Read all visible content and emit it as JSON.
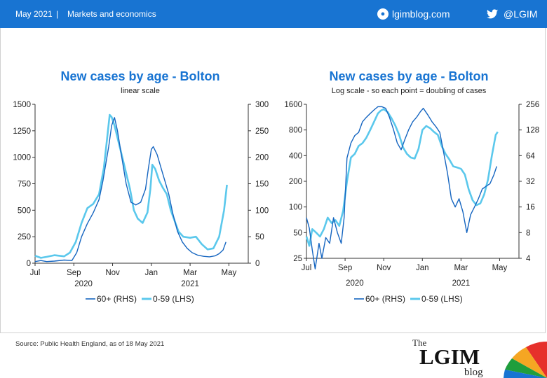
{
  "header": {
    "date": "May 2021",
    "separator": "|",
    "category": "Markets and economics",
    "site": "lgimblog.com",
    "twitter_handle": "@LGIM",
    "background_color": "#1874d2"
  },
  "footer": {
    "source": "Source: Public Health England, as of 18 May 2021",
    "logo_the": "The",
    "logo_main": "LGIM",
    "logo_blog": "blog"
  },
  "chart_data": [
    {
      "type": "line",
      "title": "New cases by age - Bolton",
      "subtitle": "linear scale",
      "x_ticks": [
        "Jul",
        "Sep",
        "Nov",
        "Jan",
        "Mar",
        "May"
      ],
      "x_years": [
        "2020",
        "2021"
      ],
      "x_range": [
        0,
        11
      ],
      "left_axis": {
        "range": [
          0,
          1500
        ],
        "ticks": [
          "0",
          "250",
          "500",
          "750",
          "1000",
          "1250",
          "1500"
        ],
        "scale": "linear"
      },
      "right_axis": {
        "range": [
          0,
          300
        ],
        "ticks": [
          "0",
          "50",
          "100",
          "150",
          "200",
          "250",
          "300"
        ],
        "scale": "linear"
      },
      "legend_position": "bottom",
      "series": [
        {
          "name": "60+ (RHS)",
          "axis": "right",
          "color": "#1565c0",
          "points": [
            [
              0,
              3
            ],
            [
              0.3,
              5
            ],
            [
              0.6,
              3
            ],
            [
              1,
              4
            ],
            [
              1.5,
              6
            ],
            [
              1.9,
              5
            ],
            [
              2.15,
              20
            ],
            [
              2.4,
              50
            ],
            [
              2.7,
              75
            ],
            [
              3,
              95
            ],
            [
              3.3,
              120
            ],
            [
              3.5,
              155
            ],
            [
              3.8,
              220
            ],
            [
              3.95,
              260
            ],
            [
              4.1,
              275
            ],
            [
              4.25,
              250
            ],
            [
              4.45,
              205
            ],
            [
              4.7,
              150
            ],
            [
              4.95,
              115
            ],
            [
              5.2,
              110
            ],
            [
              5.45,
              115
            ],
            [
              5.7,
              140
            ],
            [
              5.85,
              180
            ],
            [
              6.0,
              215
            ],
            [
              6.1,
              220
            ],
            [
              6.3,
              205
            ],
            [
              6.5,
              180
            ],
            [
              6.7,
              155
            ],
            [
              6.9,
              130
            ],
            [
              7.1,
              95
            ],
            [
              7.35,
              60
            ],
            [
              7.6,
              40
            ],
            [
              7.85,
              28
            ],
            [
              8.1,
              20
            ],
            [
              8.4,
              15
            ],
            [
              8.7,
              13
            ],
            [
              9.0,
              12
            ],
            [
              9.3,
              14
            ],
            [
              9.5,
              18
            ],
            [
              9.7,
              25
            ],
            [
              9.85,
              40
            ]
          ]
        },
        {
          "name": "0-59 (LHS)",
          "axis": "left",
          "color": "#5bc8ec",
          "points": [
            [
              0,
              70
            ],
            [
              0.3,
              50
            ],
            [
              0.6,
              60
            ],
            [
              1,
              75
            ],
            [
              1.5,
              65
            ],
            [
              1.8,
              100
            ],
            [
              2.1,
              200
            ],
            [
              2.4,
              380
            ],
            [
              2.7,
              520
            ],
            [
              3.0,
              560
            ],
            [
              3.3,
              650
            ],
            [
              3.55,
              900
            ],
            [
              3.75,
              1230
            ],
            [
              3.85,
              1400
            ],
            [
              3.95,
              1380
            ],
            [
              4.1,
              1300
            ],
            [
              4.3,
              1150
            ],
            [
              4.5,
              1000
            ],
            [
              4.7,
              850
            ],
            [
              4.9,
              700
            ],
            [
              5.1,
              500
            ],
            [
              5.3,
              420
            ],
            [
              5.55,
              380
            ],
            [
              5.8,
              480
            ],
            [
              5.95,
              700
            ],
            [
              6.05,
              930
            ],
            [
              6.2,
              890
            ],
            [
              6.4,
              780
            ],
            [
              6.6,
              710
            ],
            [
              6.8,
              650
            ],
            [
              7.0,
              500
            ],
            [
              7.2,
              400
            ],
            [
              7.4,
              300
            ],
            [
              7.65,
              250
            ],
            [
              8.0,
              240
            ],
            [
              8.3,
              250
            ],
            [
              8.6,
              180
            ],
            [
              8.9,
              130
            ],
            [
              9.2,
              140
            ],
            [
              9.5,
              250
            ],
            [
              9.75,
              500
            ],
            [
              9.9,
              740
            ]
          ]
        }
      ]
    },
    {
      "type": "line",
      "title": "New cases by age - Bolton",
      "subtitle": "Log scale - so each point = doubling of cases",
      "x_ticks": [
        "Jul",
        "Sep",
        "Nov",
        "Jan",
        "Mar",
        "May"
      ],
      "x_years": [
        "2020",
        "2021"
      ],
      "x_range": [
        0,
        11
      ],
      "left_axis": {
        "range": [
          25,
          1600
        ],
        "ticks": [
          "25",
          "50",
          "100",
          "200",
          "400",
          "800",
          "1600"
        ],
        "scale": "log2"
      },
      "right_axis": {
        "range": [
          4,
          256
        ],
        "ticks": [
          "4",
          "8",
          "16",
          "32",
          "64",
          "128",
          "256"
        ],
        "scale": "log2"
      },
      "legend_position": "bottom",
      "series": [
        {
          "name": "60+ (RHS)",
          "axis": "right",
          "color": "#1565c0",
          "points": [
            [
              0,
              12
            ],
            [
              0.15,
              9
            ],
            [
              0.3,
              5
            ],
            [
              0.45,
              3
            ],
            [
              0.65,
              6
            ],
            [
              0.8,
              4
            ],
            [
              1,
              7
            ],
            [
              1.2,
              6
            ],
            [
              1.4,
              12
            ],
            [
              1.6,
              8
            ],
            [
              1.8,
              6
            ],
            [
              1.95,
              12
            ],
            [
              2.1,
              60
            ],
            [
              2.3,
              90
            ],
            [
              2.5,
              110
            ],
            [
              2.7,
              120
            ],
            [
              2.9,
              160
            ],
            [
              3.1,
              180
            ],
            [
              3.3,
              200
            ],
            [
              3.5,
              220
            ],
            [
              3.7,
              240
            ],
            [
              3.9,
              240
            ],
            [
              4.1,
              230
            ],
            [
              4.3,
              180
            ],
            [
              4.5,
              130
            ],
            [
              4.7,
              90
            ],
            [
              4.9,
              75
            ],
            [
              5.1,
              100
            ],
            [
              5.3,
              130
            ],
            [
              5.5,
              160
            ],
            [
              5.7,
              180
            ],
            [
              5.9,
              210
            ],
            [
              6.05,
              230
            ],
            [
              6.3,
              190
            ],
            [
              6.5,
              160
            ],
            [
              6.7,
              140
            ],
            [
              6.9,
              120
            ],
            [
              7.1,
              70
            ],
            [
              7.3,
              40
            ],
            [
              7.5,
              20
            ],
            [
              7.7,
              16
            ],
            [
              7.9,
              20
            ],
            [
              8.1,
              14
            ],
            [
              8.3,
              8
            ],
            [
              8.5,
              13
            ],
            [
              8.7,
              16
            ],
            [
              8.9,
              20
            ],
            [
              9.1,
              26
            ],
            [
              9.3,
              28
            ],
            [
              9.5,
              30
            ],
            [
              9.7,
              38
            ],
            [
              9.85,
              48
            ]
          ]
        },
        {
          "name": "0-59 (LHS)",
          "axis": "left",
          "color": "#5bc8ec",
          "points": [
            [
              0,
              45
            ],
            [
              0.15,
              35
            ],
            [
              0.3,
              55
            ],
            [
              0.5,
              50
            ],
            [
              0.7,
              45
            ],
            [
              0.9,
              55
            ],
            [
              1.1,
              75
            ],
            [
              1.3,
              65
            ],
            [
              1.5,
              70
            ],
            [
              1.7,
              60
            ],
            [
              1.9,
              90
            ],
            [
              2.1,
              200
            ],
            [
              2.3,
              380
            ],
            [
              2.5,
              420
            ],
            [
              2.7,
              520
            ],
            [
              2.9,
              560
            ],
            [
              3.1,
              650
            ],
            [
              3.3,
              800
            ],
            [
              3.5,
              1000
            ],
            [
              3.7,
              1250
            ],
            [
              3.85,
              1350
            ],
            [
              4.0,
              1400
            ],
            [
              4.2,
              1300
            ],
            [
              4.4,
              1100
            ],
            [
              4.6,
              900
            ],
            [
              4.8,
              700
            ],
            [
              5.0,
              500
            ],
            [
              5.2,
              420
            ],
            [
              5.4,
              380
            ],
            [
              5.6,
              370
            ],
            [
              5.8,
              480
            ],
            [
              6.0,
              800
            ],
            [
              6.2,
              890
            ],
            [
              6.4,
              840
            ],
            [
              6.6,
              760
            ],
            [
              6.8,
              700
            ],
            [
              7.0,
              520
            ],
            [
              7.2,
              420
            ],
            [
              7.4,
              360
            ],
            [
              7.6,
              300
            ],
            [
              7.8,
              290
            ],
            [
              8.0,
              280
            ],
            [
              8.2,
              240
            ],
            [
              8.4,
              160
            ],
            [
              8.6,
              120
            ],
            [
              8.8,
              105
            ],
            [
              9.0,
              110
            ],
            [
              9.2,
              140
            ],
            [
              9.4,
              210
            ],
            [
              9.6,
              400
            ],
            [
              9.8,
              700
            ],
            [
              9.9,
              760
            ]
          ]
        }
      ]
    }
  ]
}
